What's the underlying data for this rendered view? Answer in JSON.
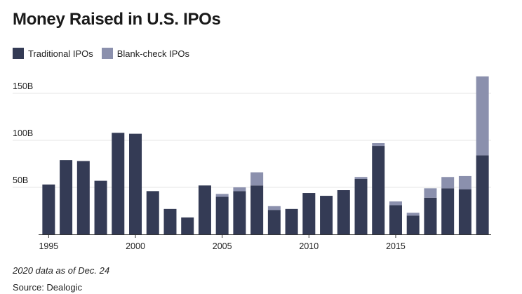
{
  "title": "Money Raised in U.S. IPOs",
  "footnote": "2020 data as of Dec. 24",
  "source": "Source: Dealogic",
  "colors": {
    "traditional": "#343b55",
    "blank_check": "#8b90ad",
    "axis": "#333333",
    "grid": "#e6e6e6"
  },
  "chart_data": {
    "type": "bar",
    "stacked": true,
    "title": "Money Raised in U.S. IPOs",
    "xlabel": "",
    "ylabel": "",
    "ylim": [
      0,
      170
    ],
    "y_ticks": [
      50,
      100,
      150
    ],
    "y_tick_labels": [
      "50B",
      "100B",
      "150B"
    ],
    "x_tick_labels": [
      "1995",
      "2000",
      "2005",
      "2010",
      "2015"
    ],
    "grid": true,
    "legend": "top-left",
    "categories": [
      "1995",
      "1996",
      "1997",
      "1998",
      "1999",
      "2000",
      "2001",
      "2002",
      "2003",
      "2004",
      "2005",
      "2006",
      "2007",
      "2008",
      "2009",
      "2010",
      "2011",
      "2012",
      "2013",
      "2014",
      "2015",
      "2016",
      "2017",
      "2018",
      "2019",
      "2020"
    ],
    "series": [
      {
        "name": "Traditional IPOs",
        "values": [
          53,
          79,
          78,
          57,
          108,
          107,
          46,
          27,
          18,
          52,
          40,
          46,
          52,
          26,
          27,
          44,
          41,
          47,
          59,
          94,
          31,
          20,
          39,
          49,
          48,
          84
        ]
      },
      {
        "name": "Blank-check IPOs",
        "values": [
          0,
          0,
          0,
          0,
          0,
          0,
          0,
          0,
          0,
          0,
          3,
          4,
          14,
          4,
          0,
          0,
          0,
          0,
          2,
          3,
          4,
          3,
          10,
          12,
          14,
          84
        ]
      }
    ]
  }
}
